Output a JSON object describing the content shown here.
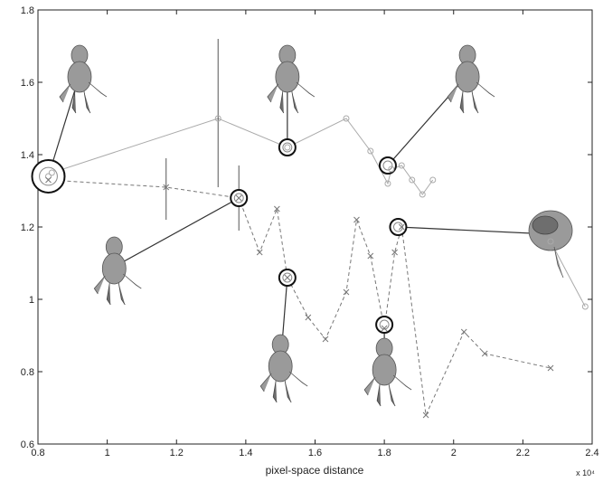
{
  "chart_data": {
    "type": "line",
    "title": "",
    "xlabel": "pixel-space distance",
    "ylabel": "",
    "x_multiplier": "x 10⁴",
    "xlim": [
      0.8,
      2.4
    ],
    "ylim": [
      0.6,
      1.8
    ],
    "grid": false,
    "xticks": [
      0.8,
      1,
      1.2,
      1.4,
      1.6,
      1.8,
      2,
      2.2,
      2.4
    ],
    "yticks": [
      0.6,
      0.8,
      1,
      1.2,
      1.4,
      1.6,
      1.8
    ],
    "xtick_labels": [
      "0.8",
      "1",
      "1.2",
      "1.4",
      "1.6",
      "1.8",
      "2",
      "2.2",
      "2.4"
    ],
    "ytick_labels": [
      "0.6",
      "0.8",
      "1",
      "1.2",
      "1.4",
      "1.6",
      "1.8"
    ],
    "series": [
      {
        "style": "solid-circle",
        "color": "#aaaaaa",
        "x": [
          0.83,
          0.84,
          1.32,
          1.52,
          1.69,
          1.76,
          1.81,
          1.82,
          1.85,
          1.88,
          1.91,
          1.94
        ],
        "y": [
          1.34,
          1.35,
          1.5,
          1.42,
          1.5,
          1.41,
          1.32,
          1.36,
          1.37,
          1.33,
          1.29,
          1.33
        ]
      },
      {
        "style": "dashed-x",
        "color": "#777777",
        "x": [
          0.83,
          1.17,
          1.38,
          1.44,
          1.49,
          1.52,
          1.58,
          1.63,
          1.69,
          1.72,
          1.76,
          1.8,
          1.83,
          1.85,
          1.92,
          2.03,
          2.09,
          2.28
        ],
        "y": [
          1.33,
          1.31,
          1.28,
          1.13,
          1.25,
          1.06,
          0.95,
          0.89,
          1.02,
          1.22,
          1.12,
          0.92,
          1.13,
          1.2,
          0.68,
          0.91,
          0.85,
          0.81
        ]
      },
      {
        "style": "solid-gray",
        "color": "#999999",
        "x": [
          2.28,
          2.38
        ],
        "y": [
          1.16,
          0.98
        ]
      }
    ],
    "error_bars": [
      {
        "x": 1.17,
        "y": 1.31,
        "low": 1.22,
        "high": 1.39
      },
      {
        "x": 1.32,
        "y": 1.5,
        "low": 1.31,
        "high": 1.72
      },
      {
        "x": 1.38,
        "y": 1.28,
        "low": 1.19,
        "high": 1.37
      }
    ],
    "highlights": [
      {
        "x": 0.83,
        "y": 1.34,
        "size": "large",
        "figure": {
          "x": 0.92,
          "y": 1.62
        }
      },
      {
        "x": 1.38,
        "y": 1.28,
        "size": "small",
        "figure": {
          "x": 1.02,
          "y": 1.09
        }
      },
      {
        "x": 1.52,
        "y": 1.42,
        "size": "small",
        "figure": {
          "x": 1.52,
          "y": 1.62
        }
      },
      {
        "x": 1.52,
        "y": 1.06,
        "size": "small",
        "figure": {
          "x": 1.5,
          "y": 0.82
        }
      },
      {
        "x": 1.81,
        "y": 1.37,
        "size": "small",
        "figure": {
          "x": 2.04,
          "y": 1.62
        }
      },
      {
        "x": 1.84,
        "y": 1.2,
        "size": "small",
        "figure": {
          "x": 2.28,
          "y": 1.18
        }
      },
      {
        "x": 1.8,
        "y": 0.93,
        "size": "small",
        "figure": {
          "x": 1.8,
          "y": 0.81
        }
      }
    ]
  }
}
